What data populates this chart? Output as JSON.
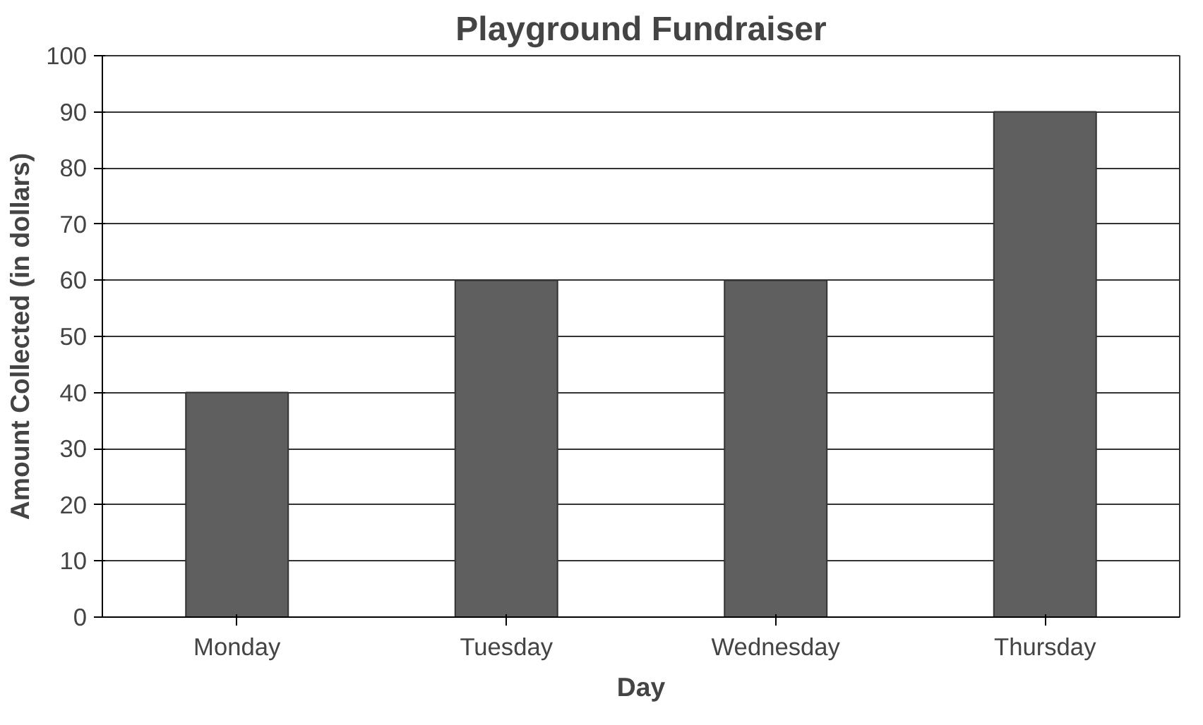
{
  "chart_data": {
    "type": "bar",
    "title": "Playground Fundraiser",
    "xlabel": "Day",
    "ylabel": "Amount Collected (in dollars)",
    "categories": [
      "Monday",
      "Tuesday",
      "Wednesday",
      "Thursday"
    ],
    "values": [
      40,
      60,
      60,
      90
    ],
    "color": "#5f5f5f",
    "ylim": [
      0,
      100
    ],
    "yticks": [
      0,
      10,
      20,
      30,
      40,
      50,
      60,
      70,
      80,
      90,
      100
    ],
    "grid": "y"
  }
}
